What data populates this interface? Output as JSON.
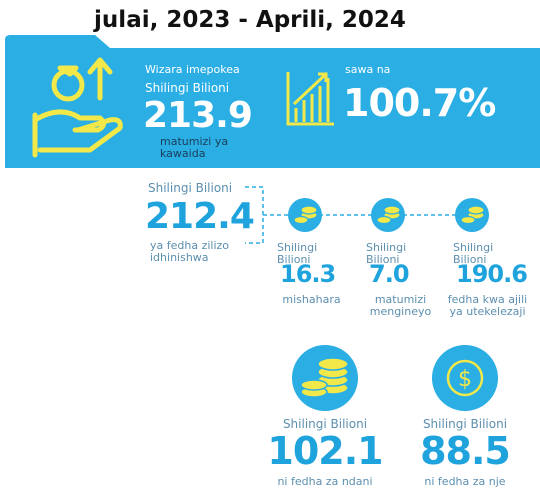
{
  "title": "julai, 2023 - Aprili, 2024",
  "banner": {
    "received_label": "Wizara imepokea",
    "received_unit": "Shilingi Bilioni",
    "received_amount": "213.9",
    "received_caption": "matumizi ya kawaida",
    "ratio_label": "sawa na",
    "ratio": "100.7%"
  },
  "approved": {
    "unit": "Shilingi Bilioni",
    "amount": "212.4",
    "caption": "ya fedha zilizo idhinishwa"
  },
  "items": [
    {
      "unit": "Shilingi Bilioni",
      "amount": "16.3",
      "caption": "mishahara"
    },
    {
      "unit": "Shilingi Bilioni",
      "amount": "7.0",
      "caption": "matumizi mengineyo"
    },
    {
      "unit": "Shilingi Bilioni",
      "amount": "190.6",
      "caption": "fedha kwa ajili ya utekelezaji"
    }
  ],
  "sources": [
    {
      "unit": "Shilingi Bilioni",
      "amount": "102.1",
      "caption": "ni fedha za ndani"
    },
    {
      "unit": "Shilingi Bilioni",
      "amount": "88.5",
      "caption": "ni fedha za nje"
    }
  ]
}
